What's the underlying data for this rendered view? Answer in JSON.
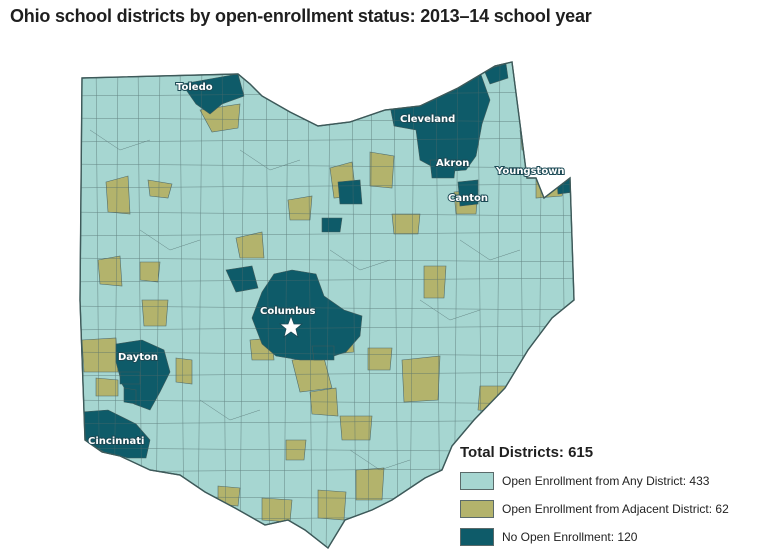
{
  "title": "Ohio school districts by open-enrollment status: 2013–14 school year",
  "colors": {
    "any": "#a6d6d1",
    "adjacent": "#b3b36c",
    "none": "#0e5b69",
    "border": "#4f6b6b"
  },
  "cities": {
    "toledo": "Toledo",
    "cleveland": "Cleveland",
    "akron": "Akron",
    "youngstown": "Youngstown",
    "canton": "Canton",
    "columbus": "Columbus",
    "dayton": "Dayton",
    "cincinnati": "Cincinnati"
  },
  "legend": {
    "total": "Total Districts: 615",
    "items": [
      {
        "label": "Open Enrollment from Any District: 433",
        "color": "#a6d6d1"
      },
      {
        "label": "Open Enrollment from Adjacent District: 62",
        "color": "#b3b36c"
      },
      {
        "label": "No Open Enrollment: 120",
        "color": "#0e5b69"
      }
    ]
  }
}
